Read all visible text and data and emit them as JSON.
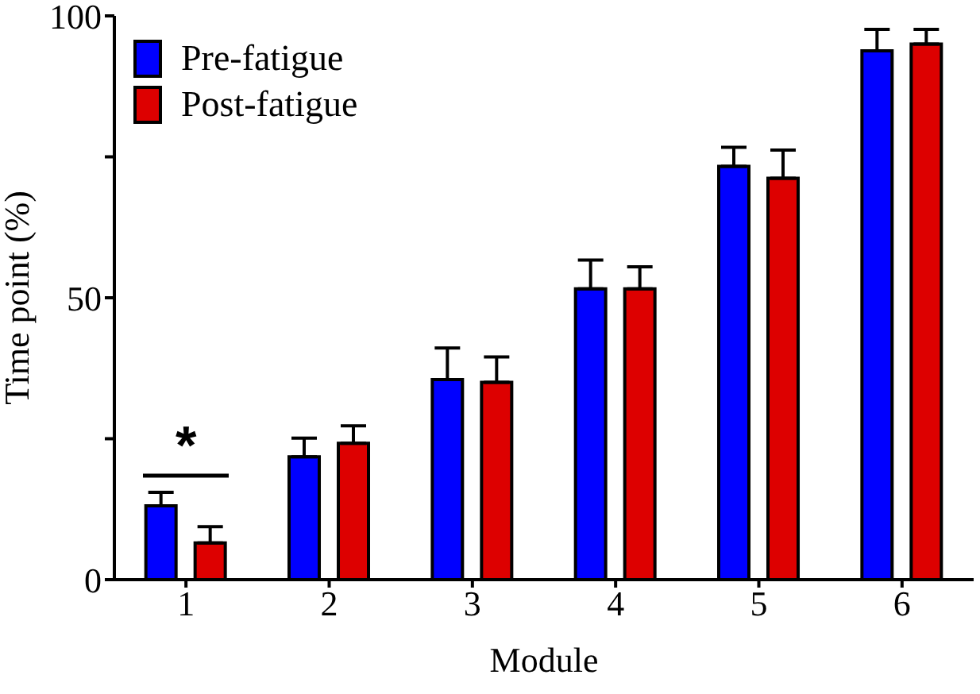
{
  "chart_data": {
    "type": "bar",
    "xlabel": "Module",
    "ylabel": "Time point (%)",
    "categories": [
      "1",
      "2",
      "3",
      "4",
      "5",
      "6"
    ],
    "series": [
      {
        "name": "Pre-fatigue",
        "color": "#0000ff",
        "values": [
          13.1,
          21.8,
          35.5,
          51.6,
          73.3,
          93.8
        ],
        "errors": [
          [
            13.1,
            15.5
          ],
          [
            21.8,
            25.1
          ],
          [
            35.5,
            41.1
          ],
          [
            51.6,
            56.7
          ],
          [
            73.3,
            76.7
          ],
          [
            93.8,
            97.6
          ]
        ]
      },
      {
        "name": "Post-fatigue",
        "color": "#dd0000",
        "values": [
          6.5,
          24.2,
          35.0,
          51.6,
          71.2,
          95.0
        ],
        "errors": [
          [
            6.5,
            9.4
          ],
          [
            24.2,
            27.3
          ],
          [
            35.0,
            39.5
          ],
          [
            51.6,
            55.5
          ],
          [
            71.2,
            76.2
          ],
          [
            95.0,
            97.6
          ]
        ]
      }
    ],
    "ylim": [
      0,
      100
    ],
    "yticks": [
      0,
      {
        "value": 25,
        "label": null
      },
      50,
      {
        "value": 75,
        "label": null
      },
      100
    ],
    "legend": "top left",
    "annotations": [
      "*"
    ]
  }
}
